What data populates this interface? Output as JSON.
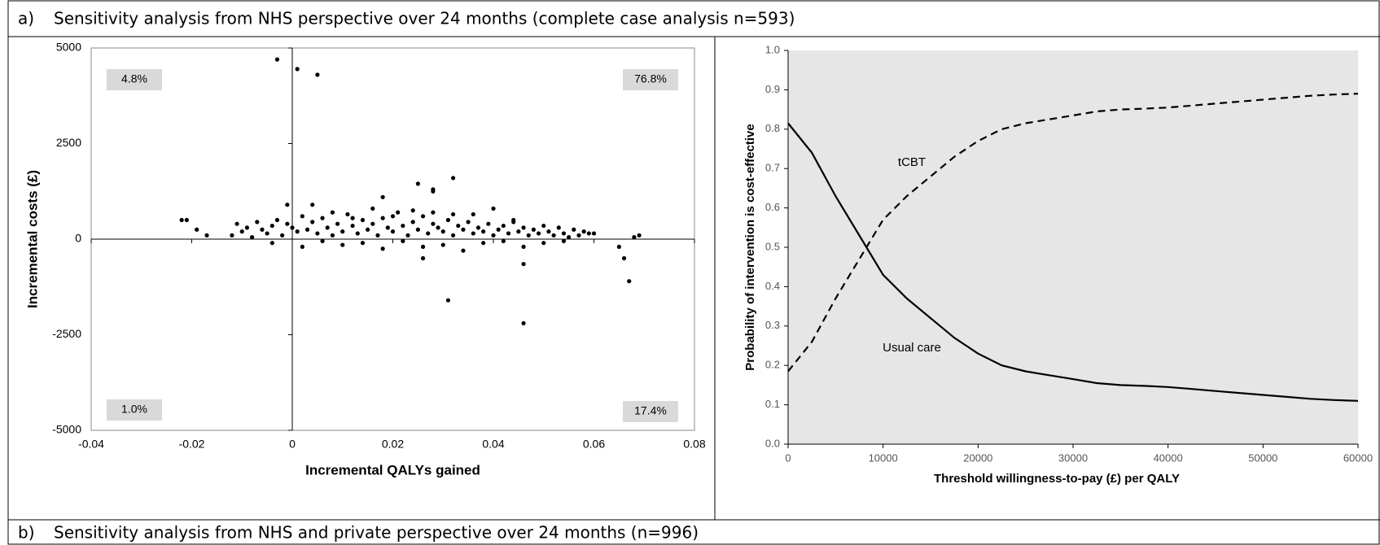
{
  "panel_a": {
    "label": "a)",
    "title": "Sensitivity analysis from NHS perspective over 24 months (complete case analysis n=593)"
  },
  "panel_b": {
    "label": "b)",
    "title": "Sensitivity analysis from NHS and private perspective over 24 months (n=996)"
  },
  "chart_data": [
    {
      "type": "scatter",
      "xlabel": "Incremental QALYs gained",
      "ylabel": "Incremental costs (£)",
      "color": "#000000",
      "xlim": [
        -0.04,
        0.08
      ],
      "xticks": [
        -0.04,
        -0.02,
        0,
        0.02,
        0.04,
        0.06,
        0.08
      ],
      "ylim": [
        -5000,
        5000
      ],
      "yticks": [
        -5000,
        -2500,
        0,
        2500,
        5000
      ],
      "annotations": [
        "4.8%",
        "76.8%",
        "1.0%",
        "17.4%"
      ],
      "x": [
        -0.003,
        0.001,
        0.005,
        0.032,
        0.031,
        0.046,
        0.067,
        0.066,
        0.065,
        0.068,
        0.069,
        -0.022,
        -0.021,
        -0.019,
        -0.017,
        0.018,
        0.025,
        0.028,
        0.028,
        -0.001,
        0.004,
        0.046,
        0.026,
        -0.012,
        -0.011,
        -0.01,
        -0.009,
        -0.008,
        -0.007,
        -0.006,
        -0.005,
        -0.004,
        -0.003,
        -0.002,
        -0.001,
        0,
        0.001,
        0.002,
        0.003,
        0.004,
        0.005,
        0.006,
        0.007,
        0.008,
        0.009,
        0.01,
        0.011,
        0.012,
        0.013,
        0.014,
        0.015,
        0.016,
        0.017,
        0.018,
        0.019,
        0.02,
        0.021,
        0.022,
        0.023,
        0.024,
        0.025,
        0.026,
        0.027,
        0.028,
        0.029,
        0.03,
        0.031,
        0.032,
        0.033,
        0.034,
        0.035,
        0.036,
        0.037,
        0.038,
        0.039,
        0.04,
        0.041,
        0.042,
        0.043,
        0.044,
        0.045,
        0.046,
        0.047,
        0.048,
        0.049,
        0.05,
        0.051,
        0.052,
        0.053,
        0.054,
        0.055,
        0.056,
        0.057,
        0.058,
        0.059,
        0.06,
        -0.004,
        0.002,
        0.006,
        0.01,
        0.014,
        0.018,
        0.022,
        0.026,
        0.03,
        0.034,
        0.038,
        0.042,
        0.046,
        0.05,
        0.054,
        0.008,
        0.016,
        0.024,
        0.032,
        0.04,
        0.012,
        0.02,
        0.028,
        0.036,
        0.044
      ],
      "values": [
        4700,
        4450,
        4300,
        1600,
        -1600,
        -2200,
        -1100,
        -500,
        -200,
        50,
        100,
        500,
        500,
        250,
        100,
        1100,
        1450,
        1300,
        1250,
        900,
        900,
        -650,
        -500,
        100,
        400,
        200,
        300,
        50,
        450,
        250,
        150,
        350,
        500,
        100,
        400,
        300,
        200,
        600,
        250,
        450,
        150,
        550,
        300,
        100,
        400,
        200,
        650,
        350,
        150,
        500,
        250,
        400,
        100,
        550,
        300,
        200,
        700,
        350,
        100,
        450,
        250,
        600,
        150,
        400,
        300,
        200,
        500,
        100,
        350,
        250,
        450,
        150,
        300,
        200,
        400,
        100,
        250,
        350,
        150,
        450,
        200,
        300,
        100,
        250,
        150,
        350,
        200,
        100,
        300,
        150,
        50,
        250,
        100,
        200,
        150,
        150,
        -100,
        -200,
        -50,
        -150,
        -100,
        -250,
        -50,
        -200,
        -150,
        -300,
        -100,
        -50,
        -200,
        -100,
        -50,
        700,
        800,
        750,
        650,
        800,
        550,
        600,
        700,
        650,
        500
      ]
    },
    {
      "type": "line",
      "xlabel": "Threshold willingness-to-pay (£) per QALY",
      "ylabel": "Probability of intervention is cost-effective",
      "background": "#e6e6e6",
      "xlim": [
        0,
        60000
      ],
      "xticks": [
        0,
        10000,
        20000,
        30000,
        40000,
        50000,
        60000
      ],
      "ylim": [
        0,
        1
      ],
      "yticks": [
        {
          "value": 0,
          "label": "0.0"
        },
        0.1,
        0.2,
        0.3,
        0.4,
        0.5,
        0.6,
        0.7,
        0.8,
        0.9,
        {
          "value": 1,
          "label": "1.0"
        }
      ],
      "x": [
        0,
        2500,
        5000,
        7500,
        10000,
        12500,
        15000,
        17500,
        20000,
        22500,
        25000,
        27500,
        30000,
        32500,
        35000,
        37500,
        40000,
        42500,
        45000,
        47500,
        50000,
        52500,
        55000,
        57500,
        60000
      ],
      "series": [
        {
          "name": "tCBT",
          "color": "#000000",
          "dashed": true,
          "values": [
            0.185,
            0.26,
            0.37,
            0.47,
            0.57,
            0.63,
            0.68,
            0.73,
            0.77,
            0.8,
            0.815,
            0.825,
            0.835,
            0.845,
            0.85,
            0.852,
            0.855,
            0.86,
            0.865,
            0.87,
            0.875,
            0.88,
            0.885,
            0.888,
            0.89
          ]
        },
        {
          "name": "Usual care",
          "color": "#000000",
          "dashed": false,
          "values": [
            0.815,
            0.74,
            0.63,
            0.53,
            0.43,
            0.37,
            0.32,
            0.27,
            0.23,
            0.2,
            0.185,
            0.175,
            0.165,
            0.155,
            0.15,
            0.148,
            0.145,
            0.14,
            0.135,
            0.13,
            0.125,
            0.12,
            0.115,
            0.112,
            0.11
          ]
        }
      ]
    }
  ]
}
